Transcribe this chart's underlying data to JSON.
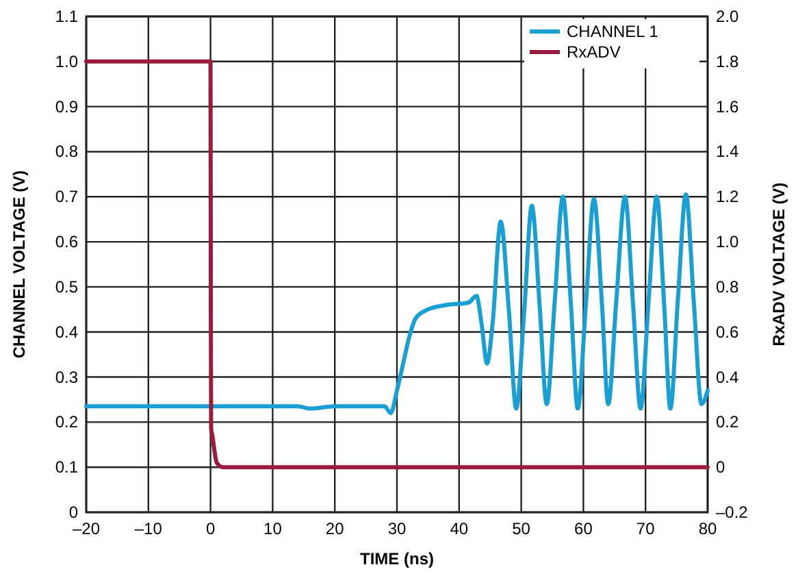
{
  "chart_data": {
    "type": "line",
    "xlabel": "TIME (ns)",
    "ylabel": "CHANNEL VOLTAGE (V)",
    "y2label": "RxADV VOLTAGE (V)",
    "xlim": [
      -20,
      80
    ],
    "xticks": [
      {
        "value": -20,
        "label": "–20"
      },
      {
        "value": -10,
        "label": "–10"
      },
      0,
      10,
      20,
      30,
      40,
      50,
      60,
      70,
      80
    ],
    "ylim": [
      0,
      1.1
    ],
    "yticks": [
      0,
      0.1,
      0.2,
      0.3,
      0.4,
      0.5,
      0.6,
      0.7,
      0.8,
      0.9,
      {
        "value": 1,
        "label": "1.0"
      },
      1.1
    ],
    "y2lim": [
      -0.2,
      2.0
    ],
    "y2ticks": [
      {
        "value": -0.2,
        "label": "–0.2"
      },
      0,
      0.2,
      0.4,
      0.6,
      0.8,
      {
        "value": 1,
        "label": "1.0"
      },
      1.2,
      1.4,
      1.6,
      1.8,
      {
        "value": 2,
        "label": "2.0"
      }
    ],
    "grid": true,
    "legend": "top right",
    "line_style": "solid",
    "marker": "none",
    "series": [
      {
        "name": "CHANNEL 1",
        "color": "#1a9fd4",
        "x": [
          -20,
          -10,
          0,
          10,
          14,
          16,
          20,
          28,
          29,
          30,
          31,
          32,
          33,
          35,
          38,
          41.5,
          42.8,
          43.6,
          44.5,
          45.4,
          46.7,
          48,
          49.2,
          50.5,
          51.7,
          53,
          54.1,
          55.4,
          56.7,
          58,
          59.1,
          60.4,
          61.7,
          63,
          64,
          65.3,
          66.7,
          68,
          69.2,
          70.5,
          71.8,
          73,
          74,
          75.2,
          76.5,
          77.8,
          79,
          80
        ],
        "values": [
          0.235,
          0.235,
          0.235,
          0.235,
          0.235,
          0.23,
          0.235,
          0.235,
          0.22,
          0.27,
          0.33,
          0.39,
          0.43,
          0.45,
          0.46,
          0.465,
          0.48,
          0.42,
          0.33,
          0.42,
          0.645,
          0.45,
          0.23,
          0.45,
          0.68,
          0.45,
          0.24,
          0.47,
          0.7,
          0.46,
          0.23,
          0.46,
          0.695,
          0.46,
          0.24,
          0.47,
          0.7,
          0.46,
          0.23,
          0.47,
          0.7,
          0.46,
          0.23,
          0.47,
          0.705,
          0.46,
          0.24,
          0.27
        ]
      },
      {
        "name": "RxADV",
        "color": "#9b1b3f",
        "axis": "y2",
        "x": [
          -20,
          -10,
          0,
          0.05,
          0.1,
          0.3,
          0.6,
          1,
          2,
          10,
          40,
          80
        ],
        "values": [
          1.8,
          1.8,
          1.8,
          0.7,
          0.17,
          0.14,
          0.08,
          0.02,
          0.0,
          0.0,
          0.0,
          0.0
        ]
      }
    ]
  }
}
